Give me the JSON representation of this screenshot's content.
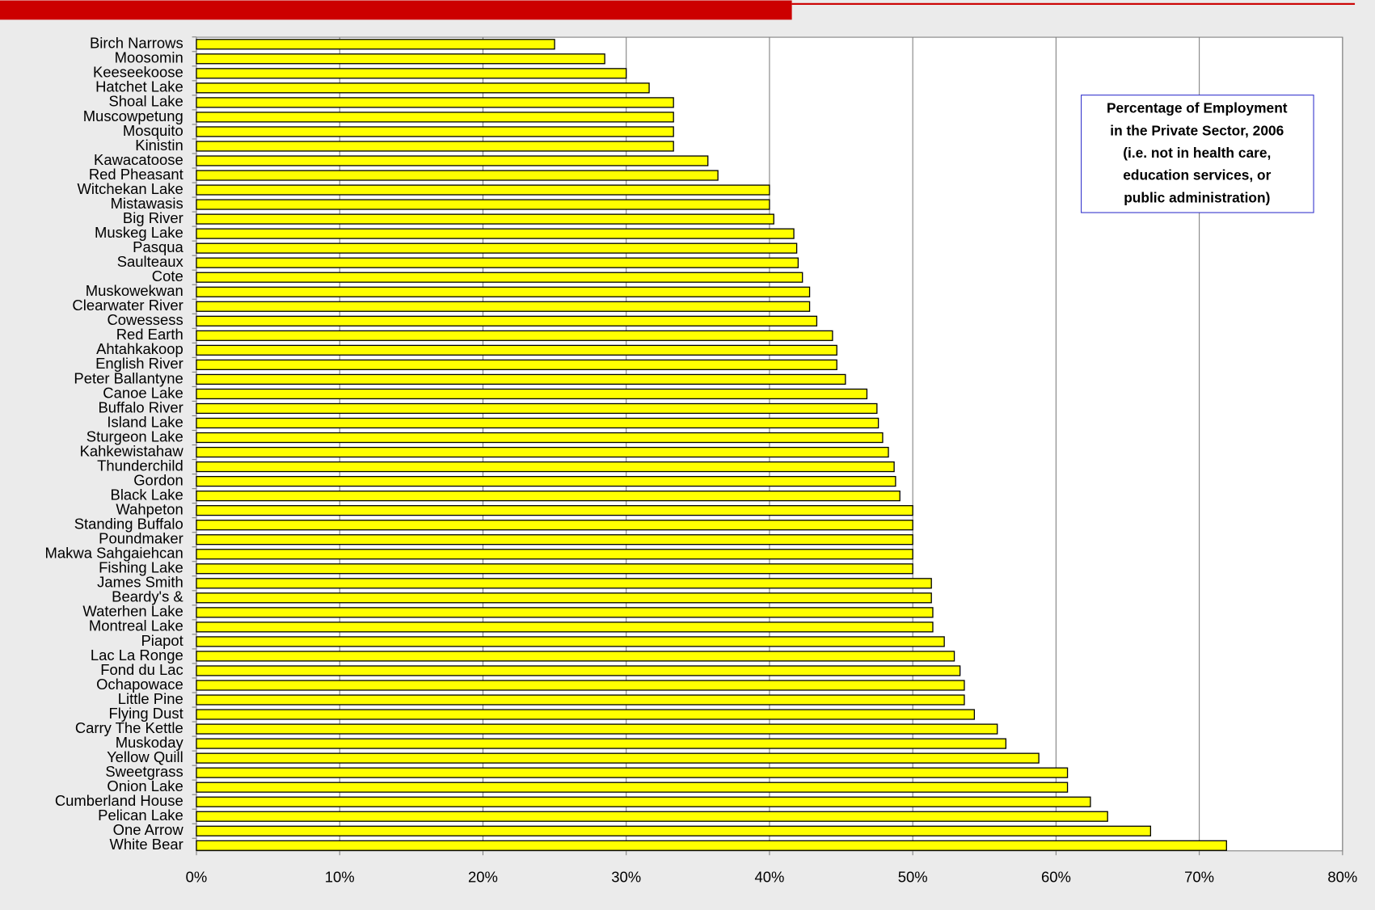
{
  "chart_data": {
    "type": "bar",
    "orientation": "horizontal",
    "annotation": [
      "Percentage of Employment",
      "in the Private Sector, 2006",
      "(i.e. not in health care,",
      "education services, or",
      "public  administration)"
    ],
    "categories": [
      "Birch Narrows",
      "Moosomin",
      "Keeseekoose",
      "Hatchet Lake",
      "Shoal Lake",
      "Muscowpetung",
      "Mosquito",
      "Kinistin",
      "Kawacatoose",
      "Red Pheasant",
      "Witchekan Lake",
      "Mistawasis",
      "Big River",
      "Muskeg Lake",
      "Pasqua",
      "Saulteaux",
      "Cote",
      "Muskowekwan",
      "Clearwater River",
      "Cowessess",
      "Red Earth",
      "Ahtahkakoop",
      "English River",
      "Peter Ballantyne",
      "Canoe Lake",
      "Buffalo River",
      "Island Lake",
      "Sturgeon Lake",
      "Kahkewistahaw",
      "Thunderchild",
      "Gordon",
      "Black Lake",
      "Wahpeton",
      "Standing Buffalo",
      "Poundmaker",
      "Makwa Sahgaiehcan",
      "Fishing Lake",
      "James Smith",
      "Beardy's &",
      "Waterhen Lake",
      "Montreal Lake",
      "Piapot",
      "Lac La Ronge",
      "Fond du Lac",
      "Ochapowace",
      "Little Pine",
      "Flying Dust",
      "Carry The Kettle",
      "Muskoday",
      "Yellow Quill",
      "Sweetgrass",
      "Onion Lake",
      "Cumberland House",
      "Pelican Lake",
      "One Arrow",
      "White Bear"
    ],
    "values": [
      25,
      28.5,
      30,
      31.6,
      33.3,
      33.3,
      33.3,
      33.3,
      35.7,
      36.4,
      40,
      40,
      40.3,
      41.7,
      41.9,
      42,
      42.3,
      42.8,
      42.8,
      43.3,
      44.4,
      44.7,
      44.7,
      45.3,
      46.8,
      47.5,
      47.6,
      47.9,
      48.3,
      48.7,
      48.8,
      49.1,
      50,
      50,
      50,
      50,
      50,
      51.3,
      51.3,
      51.4,
      51.4,
      52.2,
      52.9,
      53.3,
      53.6,
      53.6,
      54.3,
      55.9,
      56.5,
      58.8,
      60.8,
      60.8,
      62.4,
      63.6,
      66.6,
      71.9
    ],
    "color": "#ffff00",
    "xlim": [
      0,
      80
    ],
    "xticks": [
      {
        "value": 0,
        "label": "0%"
      },
      {
        "value": 10,
        "label": "10%"
      },
      {
        "value": 20,
        "label": "20%"
      },
      {
        "value": 30,
        "label": "30%"
      },
      {
        "value": 40,
        "label": "40%"
      },
      {
        "value": 50,
        "label": "50%"
      },
      {
        "value": 60,
        "label": "60%"
      },
      {
        "value": 70,
        "label": "70%"
      },
      {
        "value": 80,
        "label": "80%"
      }
    ],
    "grid": true
  }
}
